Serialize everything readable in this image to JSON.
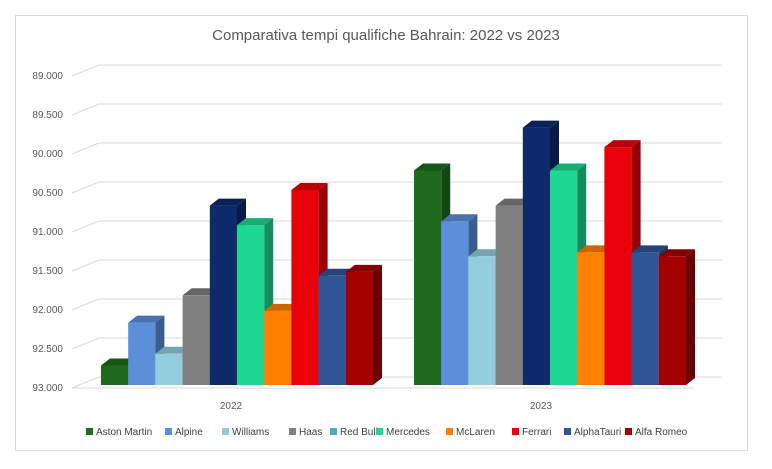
{
  "chart_data": {
    "type": "bar",
    "title": "Comparativa tempi qualifiche Bahrain: 2022 vs 2023",
    "xlabel": "",
    "ylabel": "",
    "y_reversed": true,
    "ylim": [
      89.0,
      93.0
    ],
    "yticks": [
      89.0,
      89.5,
      90.0,
      90.5,
      91.0,
      91.5,
      92.0,
      92.5,
      93.0
    ],
    "ytick_labels": [
      "89.000",
      "89.500",
      "90.000",
      "90.500",
      "91.000",
      "91.500",
      "92.000",
      "92.500",
      "93.000"
    ],
    "categories": [
      "2022",
      "2023"
    ],
    "grid": true,
    "legend_position": "bottom",
    "series": [
      {
        "name": "Aston Martin",
        "color": "#1e6b1e",
        "values": [
          92.75,
          90.25
        ]
      },
      {
        "name": "Alpine",
        "color": "#5b8fd9",
        "values": [
          92.2,
          90.9
        ]
      },
      {
        "name": "Williams",
        "color": "#92cddc",
        "values": [
          92.6,
          91.35
        ]
      },
      {
        "name": "Haas",
        "color": "#808080",
        "values": [
          91.85,
          90.7
        ]
      },
      {
        "name": "Red Bull",
        "color": "#4bacc6",
        "values": [
          null,
          null
        ]
      },
      {
        "name": "Mercedes",
        "color": "#1ed891",
        "values": [
          90.95,
          90.25
        ]
      },
      {
        "name": "McLaren",
        "color": "#ff8000",
        "values": [
          92.05,
          91.3
        ]
      },
      {
        "name": "Ferrari",
        "color": "#e8000b",
        "values": [
          90.5,
          89.95
        ]
      },
      {
        "name": "AlphaTauri",
        "color": "#2f5597",
        "values": [
          91.6,
          91.3
        ]
      },
      {
        "name": "Alfa Romeo",
        "color": "#a50000",
        "values": [
          91.55,
          91.35
        ]
      }
    ],
    "extra_series": {
      "name": "Red Bull (dark navy bars)",
      "color": "#0d2a6b",
      "values": [
        90.7,
        89.7
      ]
    }
  }
}
